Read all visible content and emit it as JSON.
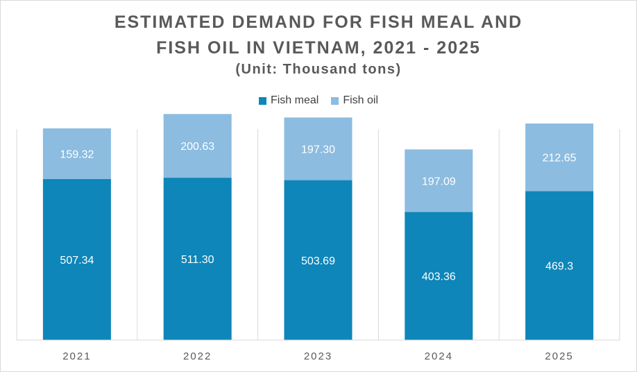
{
  "title_line1": "ESTIMATED DEMAND FOR FISH MEAL AND",
  "title_line2": "FISH OIL IN VIETNAM, 2021 - 2025",
  "subtitle": "(Unit: Thousand tons)",
  "chart_data": {
    "type": "bar",
    "stacked": true,
    "categories": [
      "2021",
      "2022",
      "2023",
      "2024",
      "2025"
    ],
    "series": [
      {
        "name": "Fish meal",
        "color": "#0E86B9",
        "values": [
          507.34,
          511.3,
          503.69,
          403.36,
          469.3
        ],
        "labels": [
          "507.34",
          "511.30",
          "503.69",
          "403.36",
          "469.3"
        ]
      },
      {
        "name": "Fish oil",
        "color": "#8CBCE0",
        "values": [
          159.32,
          200.63,
          197.3,
          197.09,
          212.65
        ],
        "labels": [
          "159.32",
          "200.63",
          "197.30",
          "197.09",
          "212.65"
        ]
      }
    ],
    "ylim": [
      0,
      800
    ],
    "legend_position": "top-center",
    "vertical_grid": true
  }
}
